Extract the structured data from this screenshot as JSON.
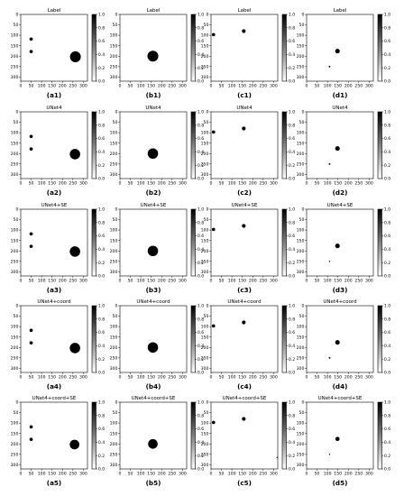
{
  "figure": {
    "rows": [
      {
        "model_title": "Label"
      },
      {
        "model_title": "UNet4"
      },
      {
        "model_title": "UNet4+SE"
      },
      {
        "model_title": "UNet4+coord"
      },
      {
        "model_title": "UNet4+coord+SE"
      }
    ],
    "columns": [
      "a",
      "b",
      "c",
      "d"
    ],
    "captions": [
      [
        "(a1)",
        "(b1)",
        "(c1)",
        "(d1)"
      ],
      [
        "(a2)",
        "(b2)",
        "(c2)",
        "(d2)"
      ],
      [
        "(a3)",
        "(b3)",
        "(c3)",
        "(d3)"
      ],
      [
        "(a4)",
        "(b4)",
        "(c4)",
        "(d4)"
      ],
      [
        "(a5)",
        "(b5)",
        "(c5)",
        "(d5)"
      ]
    ]
  },
  "chart_data": {
    "type": "heatmap",
    "colormap": "gray_r",
    "x_ticks": [
      0,
      50,
      100,
      150,
      200,
      250,
      300
    ],
    "y_ticks": [
      0,
      50,
      100,
      150,
      200,
      250,
      300
    ],
    "xlim": [
      0,
      320
    ],
    "ylim": [
      320,
      0
    ],
    "colorbar_ticks": [
      0.0,
      0.2,
      0.4,
      0.6,
      0.8,
      1.0
    ],
    "colorbar_tick_labels": [
      "0.0",
      "0.2",
      "0.4",
      "0.6",
      "0.8",
      "1.0"
    ],
    "panels": [
      {
        "id": "a1",
        "title": "Label",
        "blobs": [
          {
            "x": 50,
            "y": 118,
            "r": 8
          },
          {
            "x": 50,
            "y": 178,
            "r": 8
          },
          {
            "x": 262,
            "y": 203,
            "r": 26
          }
        ]
      },
      {
        "id": "b1",
        "title": "Label",
        "blobs": [
          {
            "x": 158,
            "y": 200,
            "r": 26
          }
        ]
      },
      {
        "id": "c1",
        "title": "Label",
        "blobs": [
          {
            "x": 12,
            "y": 97,
            "r": 8
          },
          {
            "x": 157,
            "y": 80,
            "r": 9
          }
        ]
      },
      {
        "id": "d1",
        "title": "Label",
        "blobs": [
          {
            "x": 148,
            "y": 176,
            "r": 11
          },
          {
            "x": 110,
            "y": 250,
            "r": 4
          }
        ]
      },
      {
        "id": "a2",
        "title": "UNet4",
        "blobs": [
          {
            "x": 50,
            "y": 118,
            "r": 8
          },
          {
            "x": 50,
            "y": 178,
            "r": 8
          },
          {
            "x": 260,
            "y": 203,
            "r": 25
          }
        ]
      },
      {
        "id": "b2",
        "title": "UNet4",
        "blobs": [
          {
            "x": 158,
            "y": 200,
            "r": 25
          }
        ]
      },
      {
        "id": "c2",
        "title": "UNet4",
        "blobs": [
          {
            "x": 12,
            "y": 97,
            "r": 8
          },
          {
            "x": 157,
            "y": 80,
            "r": 9
          }
        ]
      },
      {
        "id": "d2",
        "title": "UNet4",
        "blobs": [
          {
            "x": 148,
            "y": 176,
            "r": 11
          },
          {
            "x": 110,
            "y": 250,
            "r": 4
          }
        ]
      },
      {
        "id": "a3",
        "title": "UNet4+SE",
        "blobs": [
          {
            "x": 50,
            "y": 118,
            "r": 8
          },
          {
            "x": 50,
            "y": 178,
            "r": 8
          },
          {
            "x": 260,
            "y": 203,
            "r": 25
          }
        ]
      },
      {
        "id": "b3",
        "title": "UNet4+SE",
        "blobs": [
          {
            "x": 158,
            "y": 200,
            "r": 25
          }
        ]
      },
      {
        "id": "c3",
        "title": "UNet4+SE",
        "blobs": [
          {
            "x": 12,
            "y": 97,
            "r": 8
          },
          {
            "x": 157,
            "y": 80,
            "r": 9
          }
        ]
      },
      {
        "id": "d3",
        "title": "UNet4+SE",
        "blobs": [
          {
            "x": 148,
            "y": 176,
            "r": 11
          },
          {
            "x": 110,
            "y": 250,
            "r": 3
          }
        ]
      },
      {
        "id": "a4",
        "title": "UNet4+coord",
        "blobs": [
          {
            "x": 50,
            "y": 118,
            "r": 8
          },
          {
            "x": 50,
            "y": 178,
            "r": 8
          },
          {
            "x": 260,
            "y": 203,
            "r": 25
          }
        ]
      },
      {
        "id": "b4",
        "title": "UNet4+coord",
        "blobs": [
          {
            "x": 158,
            "y": 200,
            "r": 25
          }
        ]
      },
      {
        "id": "c4",
        "title": "UNet4+coord",
        "blobs": [
          {
            "x": 12,
            "y": 97,
            "r": 8
          },
          {
            "x": 157,
            "y": 80,
            "r": 9
          }
        ]
      },
      {
        "id": "d4",
        "title": "UNet4+coord",
        "blobs": [
          {
            "x": 148,
            "y": 176,
            "r": 11
          },
          {
            "x": 110,
            "y": 250,
            "r": 4
          }
        ]
      },
      {
        "id": "a5",
        "title": "UNet4+coord+SE",
        "blobs": [
          {
            "x": 50,
            "y": 118,
            "r": 8
          },
          {
            "x": 50,
            "y": 178,
            "r": 8
          },
          {
            "x": 258,
            "y": 203,
            "r": 23
          }
        ]
      },
      {
        "id": "b5",
        "title": "UNet4+coord+SE",
        "blobs": [
          {
            "x": 158,
            "y": 200,
            "r": 23
          }
        ]
      },
      {
        "id": "c5",
        "title": "UNet4+coord+SE",
        "blobs": [
          {
            "x": 12,
            "y": 97,
            "r": 8
          },
          {
            "x": 157,
            "y": 80,
            "r": 9
          },
          {
            "x": 317,
            "y": 265,
            "r": 3
          }
        ]
      },
      {
        "id": "d5",
        "title": "UNet4+coord+SE",
        "blobs": [
          {
            "x": 148,
            "y": 176,
            "r": 10
          },
          {
            "x": 110,
            "y": 250,
            "r": 3
          }
        ]
      }
    ]
  }
}
